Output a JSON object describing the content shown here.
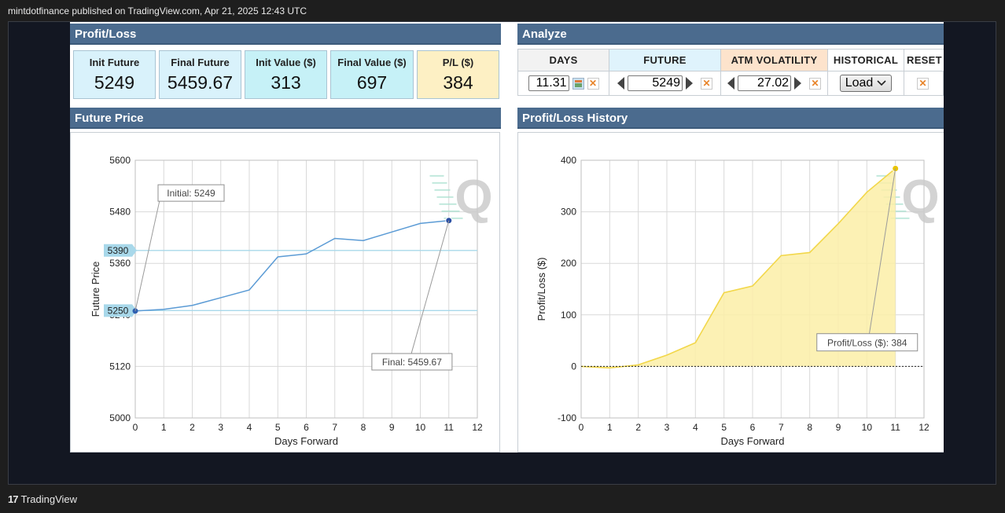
{
  "publish_line": "mintdotfinance published on TradingView.com, Apr 21, 2025 12:43 UTC",
  "footer_brand": "TradingView",
  "profit_loss": {
    "title": "Profit/Loss",
    "cards": [
      {
        "label": "Init Future",
        "value": "5249",
        "color": "#d9f2fb"
      },
      {
        "label": "Final Future",
        "value": "5459.67",
        "color": "#d9f2fb"
      },
      {
        "label": "Init Value ($)",
        "value": "313",
        "color": "#c6f1f7"
      },
      {
        "label": "Final Value ($)",
        "value": "697",
        "color": "#c6f1f7"
      },
      {
        "label": "P/L ($)",
        "value": "384",
        "color": "#fdf0c4"
      }
    ]
  },
  "analyze": {
    "title": "Analyze",
    "days": {
      "header": "DAYS",
      "value": "11.31"
    },
    "future": {
      "header": "FUTURE",
      "value": "5249"
    },
    "atm_volatility": {
      "header": "ATM VOLATILITY",
      "value": "27.02"
    },
    "historical": {
      "header": "HISTORICAL",
      "button": "Load"
    },
    "reset": {
      "header": "RESET"
    }
  },
  "future_price": {
    "title": "Future Price",
    "annotations": {
      "initial": "Initial: 5249",
      "final": "Final: 5459.67",
      "level_high": "5390",
      "level_low": "5250"
    }
  },
  "pl_history": {
    "title": "Profit/Loss History",
    "annotations": {
      "final": "Profit/Loss ($): 384"
    }
  },
  "watermark": "Q",
  "chart_data": [
    {
      "type": "line",
      "title": "Future Price",
      "xlabel": "Days Forward",
      "ylabel": "Future Price",
      "xlim": [
        0,
        12
      ],
      "ylim": [
        5000,
        5600
      ],
      "x_ticks": [
        "0",
        "1",
        "2",
        "3",
        "4",
        "5",
        "6",
        "7",
        "8",
        "9",
        "10",
        "11",
        "12"
      ],
      "y_ticks": [
        "5000",
        "5120",
        "5240",
        "5360",
        "5480",
        "5600"
      ],
      "horizontal_lines": [
        5390,
        5250
      ],
      "x": [
        0,
        1,
        2,
        3,
        4,
        5,
        6,
        7,
        8,
        9,
        10,
        11
      ],
      "values": [
        5249,
        5253,
        5262,
        5280,
        5298,
        5375,
        5382,
        5418,
        5413,
        5433,
        5453,
        5459.67
      ],
      "color": "#5b9bd5",
      "grid": true
    },
    {
      "type": "area",
      "title": "Profit/Loss History",
      "xlabel": "Days Forward",
      "ylabel": "Profit/Loss ($)",
      "xlim": [
        0,
        12
      ],
      "ylim": [
        -100,
        400
      ],
      "x_ticks": [
        "0",
        "1",
        "2",
        "3",
        "4",
        "5",
        "6",
        "7",
        "8",
        "9",
        "10",
        "11",
        "12"
      ],
      "y_ticks": [
        "-100",
        "0",
        "100",
        "200",
        "300",
        "400"
      ],
      "x": [
        0,
        1,
        2,
        3,
        4,
        5,
        6,
        7,
        8,
        9,
        10,
        11
      ],
      "values": [
        0,
        -3,
        3,
        22,
        46,
        143,
        156,
        215,
        221,
        277,
        338,
        384
      ],
      "color": "#f2d74a",
      "fill": "#fbeea7",
      "grid": true
    }
  ]
}
